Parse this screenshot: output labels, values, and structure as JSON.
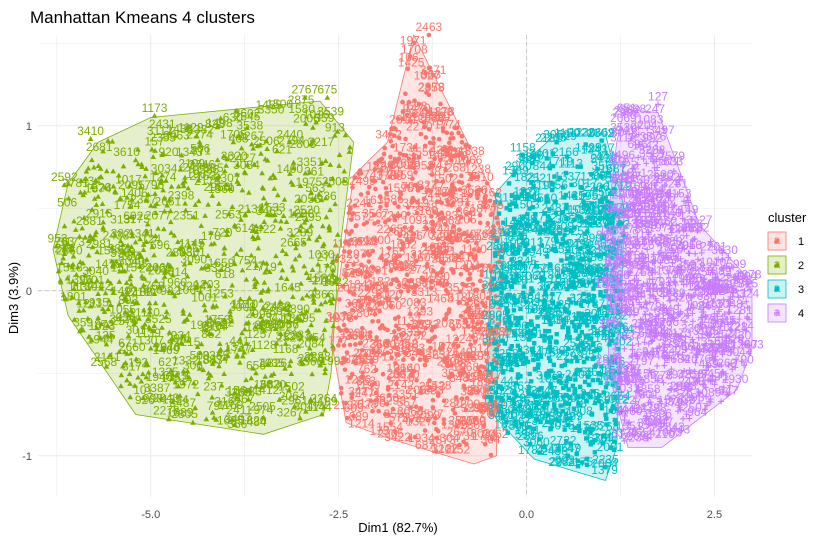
{
  "chart_data": {
    "type": "scatter",
    "title": "Manhattan Kmeans 4 clusters",
    "xlabel": "Dim1 (82.7%)",
    "ylabel": "Dim3 (3.9%)",
    "xlim": [
      -6.5,
      3.0
    ],
    "ylim": [
      -1.25,
      1.55
    ],
    "x_ticks": [
      -5.0,
      -2.5,
      0.0,
      2.5
    ],
    "x_tick_labels": [
      "-5.0",
      "-2.5",
      "0.0",
      "2.5"
    ],
    "y_ticks": [
      -1,
      0,
      1
    ],
    "y_tick_labels": [
      "-1",
      "0",
      "1"
    ],
    "grid": true,
    "legend": {
      "title": "cluster",
      "position": "right",
      "entries": [
        "1",
        "2",
        "3",
        "4"
      ]
    },
    "series": [
      {
        "name": "1",
        "color": "#F8766D",
        "marker": "circle",
        "hull": [
          [
            -1.5,
            1.55
          ],
          [
            -0.4,
            0.55
          ],
          [
            -0.3,
            0.2
          ],
          [
            -0.4,
            -0.6
          ],
          [
            -0.4,
            -1.0
          ],
          [
            -0.7,
            -1.05
          ],
          [
            -1.8,
            -0.9
          ],
          [
            -2.4,
            -0.8
          ],
          [
            -2.6,
            -0.3
          ],
          [
            -2.3,
            0.7
          ],
          [
            -1.85,
            0.9
          ]
        ],
        "labeled_points": [
          {
            "x": -1.3,
            "y": 1.55,
            "label": "2463"
          },
          {
            "x": -1.5,
            "y": 1.07,
            "label": "1698"
          },
          {
            "x": -1.6,
            "y": 0.82,
            "label": "1731"
          },
          {
            "x": -1.0,
            "y": 0.79,
            "label": "1626"
          },
          {
            "x": -0.65,
            "y": 0.69,
            "label": "1238"
          },
          {
            "x": -2.3,
            "y": -0.76,
            "label": "609"
          },
          {
            "x": -2.05,
            "y": -0.73,
            "label": "1790"
          },
          {
            "x": -0.8,
            "y": -0.93,
            "label": "731"
          },
          {
            "x": -0.55,
            "y": -0.93,
            "label": "1752"
          },
          {
            "x": -0.45,
            "y": -0.75,
            "label": "2627"
          }
        ]
      },
      {
        "name": "2",
        "color": "#7CAE00",
        "marker": "triangle",
        "hull": [
          [
            -5.0,
            1.05
          ],
          [
            -2.75,
            1.15
          ],
          [
            -2.3,
            0.9
          ],
          [
            -2.5,
            0.2
          ],
          [
            -2.6,
            -0.5
          ],
          [
            -2.7,
            -0.75
          ],
          [
            -3.5,
            -0.87
          ],
          [
            -5.2,
            -0.75
          ],
          [
            -6.1,
            -0.15
          ],
          [
            -6.3,
            0.25
          ],
          [
            -6.1,
            0.65
          ],
          [
            -5.7,
            0.9
          ]
        ],
        "labeled_points": [
          {
            "x": -4.95,
            "y": 1.06,
            "label": "1173"
          },
          {
            "x": -5.8,
            "y": 0.92,
            "label": "3410"
          },
          {
            "x": -4.35,
            "y": 0.9,
            "label": "2274"
          },
          {
            "x": -3.9,
            "y": 0.9,
            "label": "1705"
          },
          {
            "x": -2.95,
            "y": 1.17,
            "label": "2767"
          },
          {
            "x": -2.65,
            "y": 1.17,
            "label": "675"
          },
          {
            "x": -2.55,
            "y": 0.94,
            "label": "913"
          },
          {
            "x": -3.15,
            "y": 0.9,
            "label": "2440"
          },
          {
            "x": -2.8,
            "y": 1.02,
            "label": "1016"
          },
          {
            "x": -6.15,
            "y": 0.64,
            "label": "2592"
          },
          {
            "x": -5.7,
            "y": 0.57,
            "label": "1374"
          },
          {
            "x": -6.15,
            "y": 0.25,
            "label": "763"
          },
          {
            "x": -5.4,
            "y": 0.3,
            "label": "382"
          },
          {
            "x": -5.7,
            "y": -0.02,
            "label": "1442"
          },
          {
            "x": -5.35,
            "y": -0.05,
            "label": "1492"
          },
          {
            "x": -4.95,
            "y": -0.02,
            "label": "768"
          },
          {
            "x": -5.9,
            "y": -0.24,
            "label": "359"
          },
          {
            "x": -4.6,
            "y": -0.32,
            "label": "934"
          },
          {
            "x": -5.0,
            "y": -0.35,
            "label": "1307"
          },
          {
            "x": -4.35,
            "y": -0.44,
            "label": "500"
          },
          {
            "x": -3.85,
            "y": -0.39,
            "label": "1337"
          },
          {
            "x": -3.6,
            "y": -0.5,
            "label": "656"
          },
          {
            "x": -3.7,
            "y": -0.66,
            "label": "1983"
          },
          {
            "x": -5.1,
            "y": -0.65,
            "label": "101"
          },
          {
            "x": -3.5,
            "y": -0.77,
            "label": "974"
          }
        ]
      },
      {
        "name": "3",
        "color": "#00BFC4",
        "marker": "square",
        "hull": [
          [
            0.4,
            0.95
          ],
          [
            1.05,
            0.95
          ],
          [
            1.3,
            0.5
          ],
          [
            1.25,
            -0.3
          ],
          [
            1.2,
            -0.95
          ],
          [
            1.05,
            -1.15
          ],
          [
            0.1,
            -1.02
          ],
          [
            -0.55,
            -0.7
          ],
          [
            -0.45,
            0.4
          ],
          [
            -0.4,
            0.6
          ],
          [
            -0.1,
            0.75
          ]
        ],
        "labeled_points": [
          {
            "x": 0.4,
            "y": 0.9,
            "label": "3058"
          },
          {
            "x": -0.05,
            "y": 0.82,
            "label": "1158"
          },
          {
            "x": 1.0,
            "y": 0.91,
            "label": "3669"
          },
          {
            "x": -0.2,
            "y": -0.48,
            "label": "3491"
          },
          {
            "x": -0.25,
            "y": -0.86,
            "label": "1838"
          },
          {
            "x": 0.05,
            "y": -0.93,
            "label": "2896"
          },
          {
            "x": 0.55,
            "y": -1.0,
            "label": "3649"
          },
          {
            "x": 1.05,
            "y": -1.07,
            "label": "2235"
          },
          {
            "x": 0.8,
            "y": -0.67,
            "label": "1246"
          },
          {
            "x": 0.95,
            "y": -0.54,
            "label": "3643"
          }
        ]
      },
      {
        "name": "4",
        "color": "#C77CFF",
        "marker": "plus",
        "hull": [
          [
            1.3,
            1.1
          ],
          [
            1.75,
            1.08
          ],
          [
            2.3,
            0.4
          ],
          [
            3.0,
            0.05
          ],
          [
            3.0,
            -0.35
          ],
          [
            2.8,
            -0.6
          ],
          [
            1.8,
            -0.95
          ],
          [
            1.35,
            -0.95
          ],
          [
            1.1,
            -0.5
          ],
          [
            1.05,
            0.3
          ],
          [
            1.2,
            0.9
          ]
        ],
        "labeled_points": [
          {
            "x": 1.75,
            "y": 1.13,
            "label": "127"
          },
          {
            "x": 2.45,
            "y": -0.55,
            "label": "945"
          },
          {
            "x": 2.05,
            "y": -0.72,
            "label": "3287"
          },
          {
            "x": 1.6,
            "y": -0.76,
            "label": "3479"
          },
          {
            "x": 1.65,
            "y": -0.85,
            "label": "3441"
          },
          {
            "x": 1.3,
            "y": -0.91,
            "label": "3334"
          },
          {
            "x": 2.7,
            "y": -0.13,
            "label": "1048"
          },
          {
            "x": 2.55,
            "y": 0.07,
            "label": "1889"
          }
        ]
      }
    ]
  }
}
